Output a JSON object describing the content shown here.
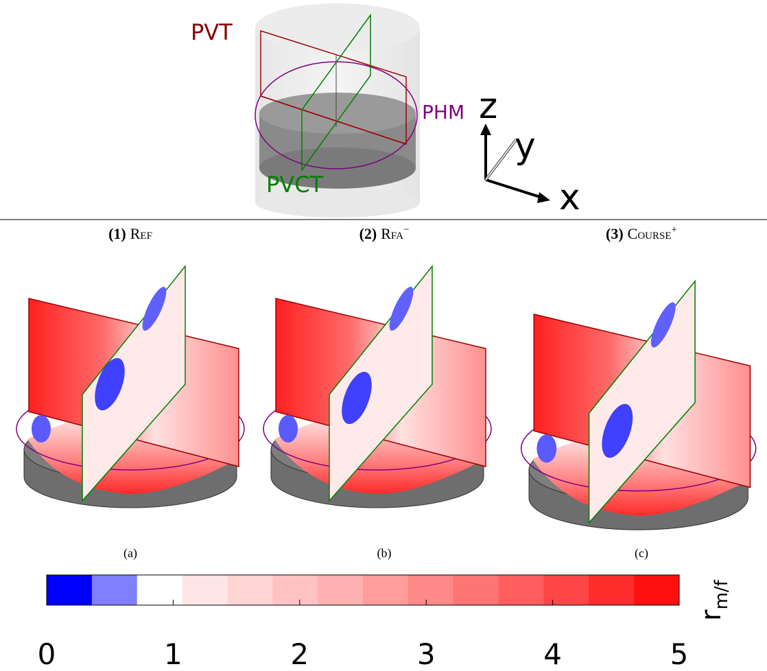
{
  "diagram": {
    "labels": {
      "pvt": "PVT",
      "phm": "PHM",
      "pvct": "PVCT"
    },
    "axes": {
      "z": "z",
      "y": "y",
      "x": "x"
    }
  },
  "panels": [
    {
      "number": "(1)",
      "name": "Ref",
      "caption": "(a)"
    },
    {
      "number": "(2)",
      "name": "Rfa",
      "sup": "−",
      "caption": "(b)"
    },
    {
      "number": "(3)",
      "name": "Course",
      "sup": "+",
      "caption": "(c)"
    }
  ],
  "colorbar": {
    "label": "r",
    "label_sub": "m/f",
    "lim": [
      0,
      5
    ],
    "ticks": [
      0,
      1,
      2,
      3,
      4,
      5
    ],
    "colors": [
      "#0000ff",
      "#7f7fff",
      "#ffffff",
      "#ffe5e5",
      "#ffd4d4",
      "#ffc2c2",
      "#ffb0b0",
      "#ff9c9c",
      "#ff8888",
      "#ff7474",
      "#ff5e5e",
      "#ff4646",
      "#ff2c2c",
      "#ff1010"
    ]
  }
}
